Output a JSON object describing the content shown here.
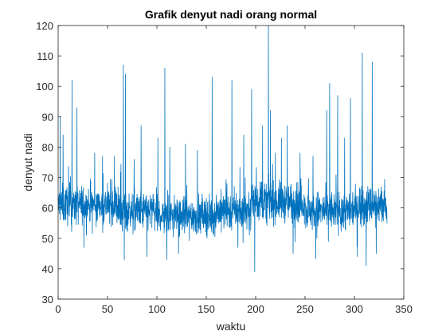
{
  "chart_data": {
    "type": "line",
    "title": "Grafik denyut nadi orang normal",
    "xlabel": "waktu",
    "ylabel": "denyut nadi",
    "xlim": [
      0,
      350
    ],
    "ylim": [
      30,
      120
    ],
    "xticks": [
      0,
      50,
      100,
      150,
      200,
      250,
      300,
      350
    ],
    "yticks": [
      30,
      40,
      50,
      60,
      70,
      80,
      90,
      100,
      110,
      120
    ],
    "x_end": 333,
    "grid": false,
    "box": true,
    "line_color": "#0072BD",
    "baseline": 60,
    "spikes": [
      {
        "x": 2,
        "y": 90
      },
      {
        "x": 5,
        "y": 84
      },
      {
        "x": 14,
        "y": 102
      },
      {
        "x": 19,
        "y": 93
      },
      {
        "x": 26,
        "y": 47
      },
      {
        "x": 37,
        "y": 78
      },
      {
        "x": 45,
        "y": 77
      },
      {
        "x": 57,
        "y": 77
      },
      {
        "x": 66,
        "y": 107
      },
      {
        "x": 67,
        "y": 43
      },
      {
        "x": 68,
        "y": 104
      },
      {
        "x": 77,
        "y": 76
      },
      {
        "x": 84,
        "y": 87
      },
      {
        "x": 90,
        "y": 44
      },
      {
        "x": 101,
        "y": 83
      },
      {
        "x": 108,
        "y": 106
      },
      {
        "x": 110,
        "y": 43
      },
      {
        "x": 113,
        "y": 80
      },
      {
        "x": 122,
        "y": 45
      },
      {
        "x": 129,
        "y": 81
      },
      {
        "x": 141,
        "y": 79
      },
      {
        "x": 156,
        "y": 103
      },
      {
        "x": 171,
        "y": 68
      },
      {
        "x": 176,
        "y": 102
      },
      {
        "x": 182,
        "y": 47
      },
      {
        "x": 188,
        "y": 84
      },
      {
        "x": 196,
        "y": 99
      },
      {
        "x": 199,
        "y": 39
      },
      {
        "x": 207,
        "y": 87
      },
      {
        "x": 213,
        "y": 120
      },
      {
        "x": 215,
        "y": 92
      },
      {
        "x": 220,
        "y": 78
      },
      {
        "x": 226,
        "y": 83
      },
      {
        "x": 232,
        "y": 87
      },
      {
        "x": 238,
        "y": 45
      },
      {
        "x": 245,
        "y": 78
      },
      {
        "x": 258,
        "y": 77
      },
      {
        "x": 262,
        "y": 50
      },
      {
        "x": 272,
        "y": 92
      },
      {
        "x": 275,
        "y": 101
      },
      {
        "x": 283,
        "y": 97
      },
      {
        "x": 290,
        "y": 83
      },
      {
        "x": 296,
        "y": 96
      },
      {
        "x": 303,
        "y": 44
      },
      {
        "x": 308,
        "y": 111
      },
      {
        "x": 312,
        "y": 41
      },
      {
        "x": 318,
        "y": 108
      },
      {
        "x": 322,
        "y": 45
      },
      {
        "x": 327,
        "y": 67
      }
    ]
  }
}
